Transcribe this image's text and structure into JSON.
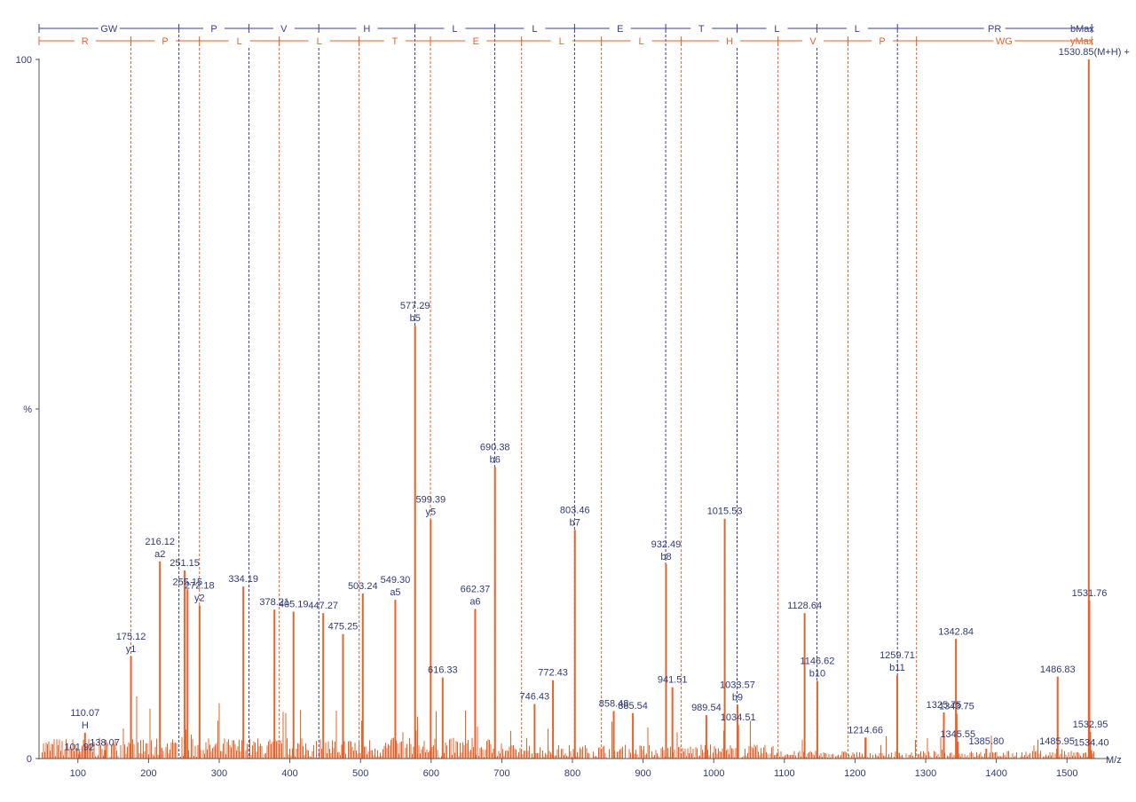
{
  "colors": {
    "peak": "#E8622A",
    "b_ion": "#3A3F8F",
    "y_ion": "#E8622A",
    "label": "#2F3A7A",
    "axis": "#555555"
  },
  "chart_data": {
    "type": "bar",
    "xlabel": "M/z",
    "ylabel": "%",
    "xlim": [
      45,
      1560
    ],
    "ylim": [
      0,
      100
    ],
    "x_ticks": [
      100,
      200,
      300,
      400,
      500,
      600,
      700,
      800,
      900,
      1000,
      1100,
      1200,
      1300,
      1400,
      1500
    ],
    "y_tick_labels": [
      {
        "value": 0,
        "label": "0"
      },
      {
        "value": 50,
        "label": "%"
      },
      {
        "value": 100,
        "label": "100"
      }
    ],
    "b_series": {
      "name": "bMax",
      "breaks": [
        45,
        243,
        342,
        441,
        577,
        690,
        803,
        932,
        1033,
        1146,
        1260,
        1535
      ],
      "residues": [
        "GW",
        "P",
        "V",
        "H",
        "L",
        "L",
        "E",
        "T",
        "L",
        "L",
        "PR"
      ]
    },
    "y_series": {
      "name": "yMax",
      "breaks": [
        45,
        175,
        272,
        385,
        498,
        599,
        728,
        841,
        954,
        1091,
        1190,
        1287,
        1535
      ],
      "residues": [
        "R",
        "P",
        "L",
        "L",
        "T",
        "E",
        "L",
        "L",
        "H",
        "V",
        "P",
        "WG"
      ]
    },
    "labeled_peaks": [
      {
        "mz": 101.92,
        "intensity": 0.6,
        "label": "101.92",
        "ion": ""
      },
      {
        "mz": 110.07,
        "intensity": 3.7,
        "label": "110.07",
        "ion": "H"
      },
      {
        "mz": 138.07,
        "intensity": 1.2,
        "label": "138.07",
        "ion": ""
      },
      {
        "mz": 175.12,
        "intensity": 14.6,
        "label": "175.12",
        "ion": "y1"
      },
      {
        "mz": 216.12,
        "intensity": 28.2,
        "label": "216.12",
        "ion": "a2"
      },
      {
        "mz": 251.15,
        "intensity": 26.9,
        "label": "251.15",
        "ion": ""
      },
      {
        "mz": 255.15,
        "intensity": 24.2,
        "label": "255.15",
        "ion": ""
      },
      {
        "mz": 272.18,
        "intensity": 21.9,
        "label": "272.18",
        "ion": "y2"
      },
      {
        "mz": 334.19,
        "intensity": 24.6,
        "label": "334.19",
        "ion": ""
      },
      {
        "mz": 378.21,
        "intensity": 21.3,
        "label": "378.21",
        "ion": ""
      },
      {
        "mz": 405.19,
        "intensity": 21.0,
        "label": "405.19",
        "ion": ""
      },
      {
        "mz": 447.27,
        "intensity": 20.8,
        "label": "447.27",
        "ion": ""
      },
      {
        "mz": 475.25,
        "intensity": 17.8,
        "label": "475.25",
        "ion": ""
      },
      {
        "mz": 503.24,
        "intensity": 23.6,
        "label": "503.24",
        "ion": ""
      },
      {
        "mz": 549.3,
        "intensity": 22.7,
        "label": "549.30",
        "ion": "a5"
      },
      {
        "mz": 577.29,
        "intensity": 61.9,
        "label": "577.29",
        "ion": "b5"
      },
      {
        "mz": 599.39,
        "intensity": 34.2,
        "label": "599.39",
        "ion": "y5"
      },
      {
        "mz": 616.33,
        "intensity": 11.6,
        "label": "616.33",
        "ion": ""
      },
      {
        "mz": 662.37,
        "intensity": 21.4,
        "label": "662.37",
        "ion": "a6"
      },
      {
        "mz": 690.38,
        "intensity": 41.7,
        "label": "690.38",
        "ion": "b6"
      },
      {
        "mz": 746.43,
        "intensity": 7.8,
        "label": "746.43",
        "ion": ""
      },
      {
        "mz": 772.43,
        "intensity": 11.2,
        "label": "772.43",
        "ion": ""
      },
      {
        "mz": 803.46,
        "intensity": 32.7,
        "label": "803.46",
        "ion": "b7"
      },
      {
        "mz": 858.48,
        "intensity": 6.8,
        "label": "858.48",
        "ion": ""
      },
      {
        "mz": 885.54,
        "intensity": 6.5,
        "label": "885.54",
        "ion": ""
      },
      {
        "mz": 932.49,
        "intensity": 27.8,
        "label": "932.49",
        "ion": "b8"
      },
      {
        "mz": 941.51,
        "intensity": 10.2,
        "label": "941.51",
        "ion": ""
      },
      {
        "mz": 989.54,
        "intensity": 6.2,
        "label": "989.54",
        "ion": ""
      },
      {
        "mz": 1015.53,
        "intensity": 34.3,
        "label": "1015.53",
        "ion": ""
      },
      {
        "mz": 1033.57,
        "intensity": 7.7,
        "label": "1033.57",
        "ion": "b9"
      },
      {
        "mz": 1034.51,
        "intensity": 4.8,
        "label": "1034.51",
        "ion": ""
      },
      {
        "mz": 1128.64,
        "intensity": 20.8,
        "label": "1128.64",
        "ion": ""
      },
      {
        "mz": 1146.62,
        "intensity": 11.1,
        "label": "1146.62",
        "ion": "b10"
      },
      {
        "mz": 1214.66,
        "intensity": 3.0,
        "label": "1214.66",
        "ion": ""
      },
      {
        "mz": 1259.71,
        "intensity": 11.9,
        "label": "1259.71",
        "ion": "b11"
      },
      {
        "mz": 1325.75,
        "intensity": 6.6,
        "label": "1325.75",
        "ion": ""
      },
      {
        "mz": 1342.84,
        "intensity": 17.1,
        "label": "1342.84",
        "ion": ""
      },
      {
        "mz": 1343.75,
        "intensity": 6.4,
        "label": "1343.75",
        "ion": ""
      },
      {
        "mz": 1345.55,
        "intensity": 2.4,
        "label": "1345.55",
        "ion": ""
      },
      {
        "mz": 1385.8,
        "intensity": 1.4,
        "label": "1385.80",
        "ion": ""
      },
      {
        "mz": 1485.95,
        "intensity": 1.4,
        "label": "1485.95",
        "ion": ""
      },
      {
        "mz": 1486.83,
        "intensity": 11.7,
        "label": "1486.83",
        "ion": ""
      },
      {
        "mz": 1530.85,
        "intensity": 100,
        "label": "1530.85(M+H) +",
        "ion": ""
      },
      {
        "mz": 1531.76,
        "intensity": 22.6,
        "label": "1531.76",
        "ion": ""
      },
      {
        "mz": 1532.95,
        "intensity": 3.8,
        "label": "1532.95",
        "ion": ""
      },
      {
        "mz": 1534.4,
        "intensity": 1.2,
        "label": "1534.40",
        "ion": ""
      }
    ]
  }
}
